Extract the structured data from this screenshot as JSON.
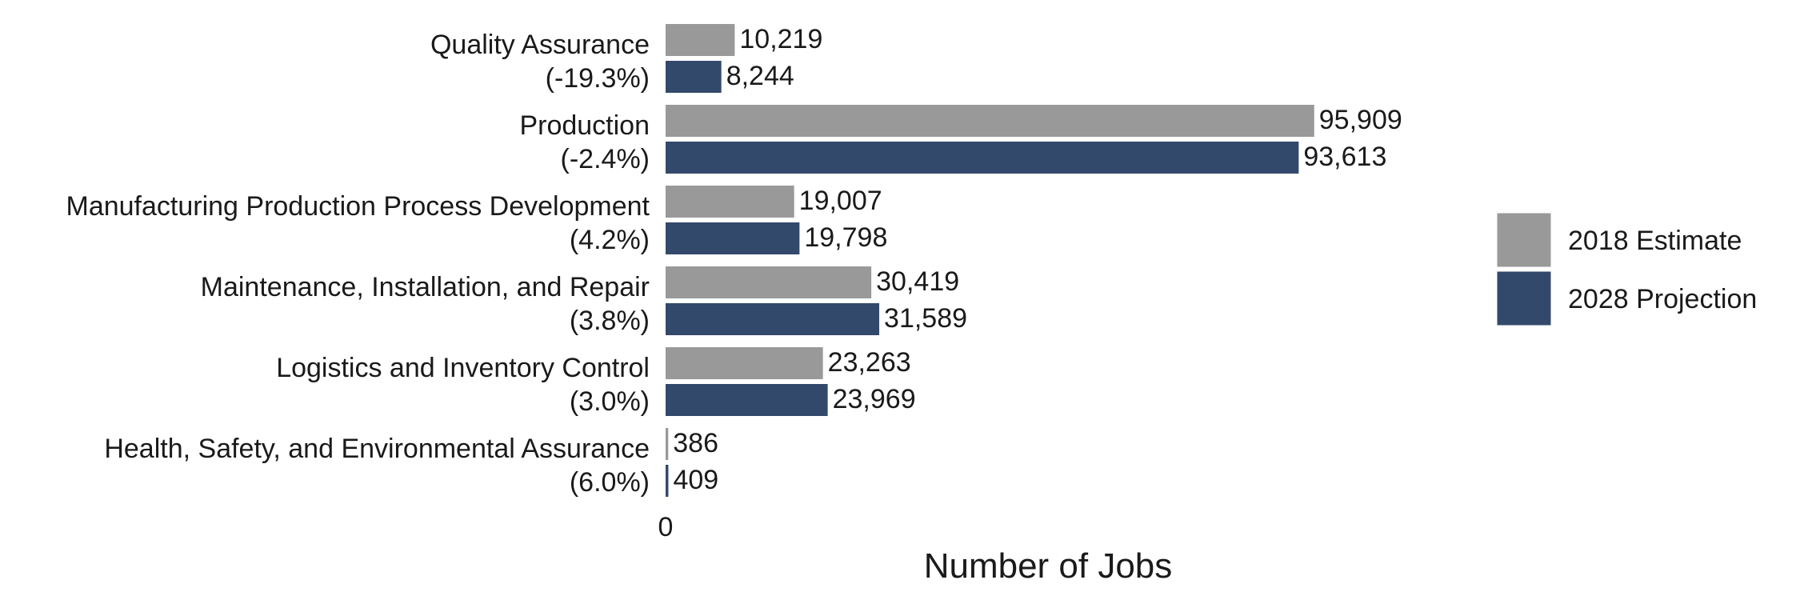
{
  "chart_data": {
    "type": "bar",
    "orientation": "horizontal",
    "title": "",
    "xlabel": "Number of Jobs",
    "ylabel": "",
    "x_ticks": [
      "0"
    ],
    "xlim": [
      0,
      97000
    ],
    "grid": false,
    "legend_position": "right",
    "categories": [
      {
        "name": "Quality Assurance",
        "change": "(-19.3%)"
      },
      {
        "name": "Production",
        "change": "(-2.4%)"
      },
      {
        "name": "Manufacturing Production Process Development",
        "change": "(4.2%)"
      },
      {
        "name": "Maintenance, Installation, and Repair",
        "change": "(3.8%)"
      },
      {
        "name": "Logistics and Inventory Control",
        "change": "(3.0%)"
      },
      {
        "name": "Health, Safety, and Environmental Assurance",
        "change": "(6.0%)"
      }
    ],
    "series": [
      {
        "name": "2018 Estimate",
        "color": "#999999",
        "values": [
          10219,
          95909,
          19007,
          30419,
          23263,
          386
        ],
        "labels": [
          "10,219",
          "95,909",
          "19,007",
          "30,419",
          "23,263",
          "386"
        ]
      },
      {
        "name": "2028 Projection",
        "color": "#33496b",
        "values": [
          8244,
          93613,
          19798,
          31589,
          23969,
          409
        ],
        "labels": [
          "8,244",
          "93,613",
          "19,798",
          "31,589",
          "23,969",
          "409"
        ]
      }
    ]
  }
}
